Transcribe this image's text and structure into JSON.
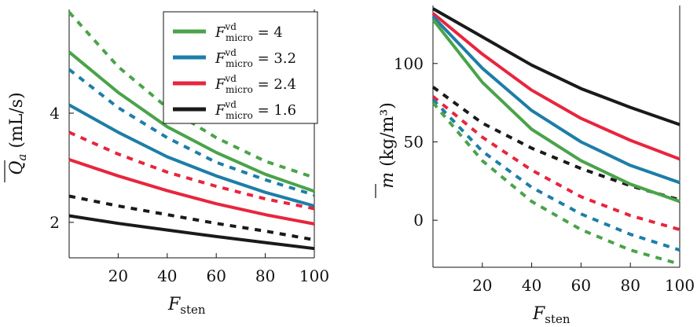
{
  "chart_data": [
    {
      "type": "line",
      "xlabel": {
        "main": "F",
        "sub": "sten"
      },
      "ylabel": {
        "main": "Q",
        "sub": "a",
        "unit": " (mL/s)"
      },
      "xlim": [
        0,
        100
      ],
      "ylim": [
        1.35,
        5.9
      ],
      "xticks": [
        20,
        40,
        60,
        80,
        100
      ],
      "yticks": [
        2,
        4
      ],
      "x": [
        0,
        20,
        40,
        60,
        80,
        100
      ],
      "legend_position": "top-right",
      "grid": false,
      "series": [
        {
          "name": "4",
          "color": "#4aa34a",
          "style": "solid",
          "values": [
            5.12,
            4.38,
            3.75,
            3.28,
            2.88,
            2.57
          ]
        },
        {
          "name": "3.2",
          "color": "#1d7ea8",
          "style": "solid",
          "values": [
            4.15,
            3.65,
            3.2,
            2.85,
            2.55,
            2.3
          ]
        },
        {
          "name": "2.4",
          "color": "#e8253e",
          "style": "solid",
          "values": [
            3.15,
            2.85,
            2.58,
            2.34,
            2.14,
            1.97
          ]
        },
        {
          "name": "1.6",
          "color": "#1a1a1a",
          "style": "solid",
          "values": [
            2.12,
            1.98,
            1.86,
            1.74,
            1.63,
            1.52
          ]
        },
        {
          "name": "",
          "color": "#4aa34a",
          "style": "dashed",
          "values": [
            5.85,
            4.85,
            4.1,
            3.55,
            3.12,
            2.82
          ]
        },
        {
          "name": "",
          "color": "#1d7ea8",
          "style": "dashed",
          "values": [
            4.8,
            4.1,
            3.55,
            3.1,
            2.78,
            2.5
          ]
        },
        {
          "name": "",
          "color": "#e8253e",
          "style": "dashed",
          "values": [
            3.65,
            3.25,
            2.92,
            2.66,
            2.43,
            2.25
          ]
        },
        {
          "name": "",
          "color": "#1a1a1a",
          "style": "dashed",
          "values": [
            2.48,
            2.3,
            2.14,
            1.98,
            1.84,
            1.68
          ]
        }
      ]
    },
    {
      "type": "line",
      "xlabel": {
        "main": "F",
        "sub": "sten"
      },
      "ylabel": {
        "main": "m",
        "unit": " (kg/m³)"
      },
      "xlim": [
        0,
        100
      ],
      "ylim": [
        -30,
        137
      ],
      "xticks": [
        20,
        40,
        60,
        80,
        100
      ],
      "yticks": [
        0,
        50,
        100
      ],
      "x": [
        0,
        20,
        40,
        60,
        80,
        100
      ],
      "grid": false,
      "series": [
        {
          "name": "",
          "color": "#1a1a1a",
          "style": "solid",
          "values": [
            135,
            117,
            99,
            84,
            72,
            61
          ]
        },
        {
          "name": "",
          "color": "#e8253e",
          "style": "solid",
          "values": [
            132,
            106,
            83,
            65,
            51,
            39
          ]
        },
        {
          "name": "",
          "color": "#1d7ea8",
          "style": "solid",
          "values": [
            130,
            97,
            70,
            50,
            35,
            24
          ]
        },
        {
          "name": "",
          "color": "#4aa34a",
          "style": "solid",
          "values": [
            128,
            88,
            58,
            38,
            23,
            12
          ]
        },
        {
          "name": "",
          "color": "#1a1a1a",
          "style": "dashed",
          "values": [
            85,
            62,
            46,
            33,
            22,
            13
          ]
        },
        {
          "name": "",
          "color": "#e8253e",
          "style": "dashed",
          "values": [
            79,
            53,
            32,
            15,
            3,
            -6
          ]
        },
        {
          "name": "",
          "color": "#1d7ea8",
          "style": "dashed",
          "values": [
            77,
            44,
            21,
            4,
            -9,
            -19
          ]
        },
        {
          "name": "",
          "color": "#4aa34a",
          "style": "dashed",
          "values": [
            75,
            38,
            12,
            -6,
            -19,
            -28
          ]
        }
      ]
    }
  ],
  "legend": {
    "symbol": "F",
    "sup": "vd",
    "sub": "micro",
    "entries": [
      "4",
      "3.2",
      "2.4",
      "1.6"
    ],
    "colors": [
      "#4aa34a",
      "#1d7ea8",
      "#e8253e",
      "#1a1a1a"
    ]
  }
}
